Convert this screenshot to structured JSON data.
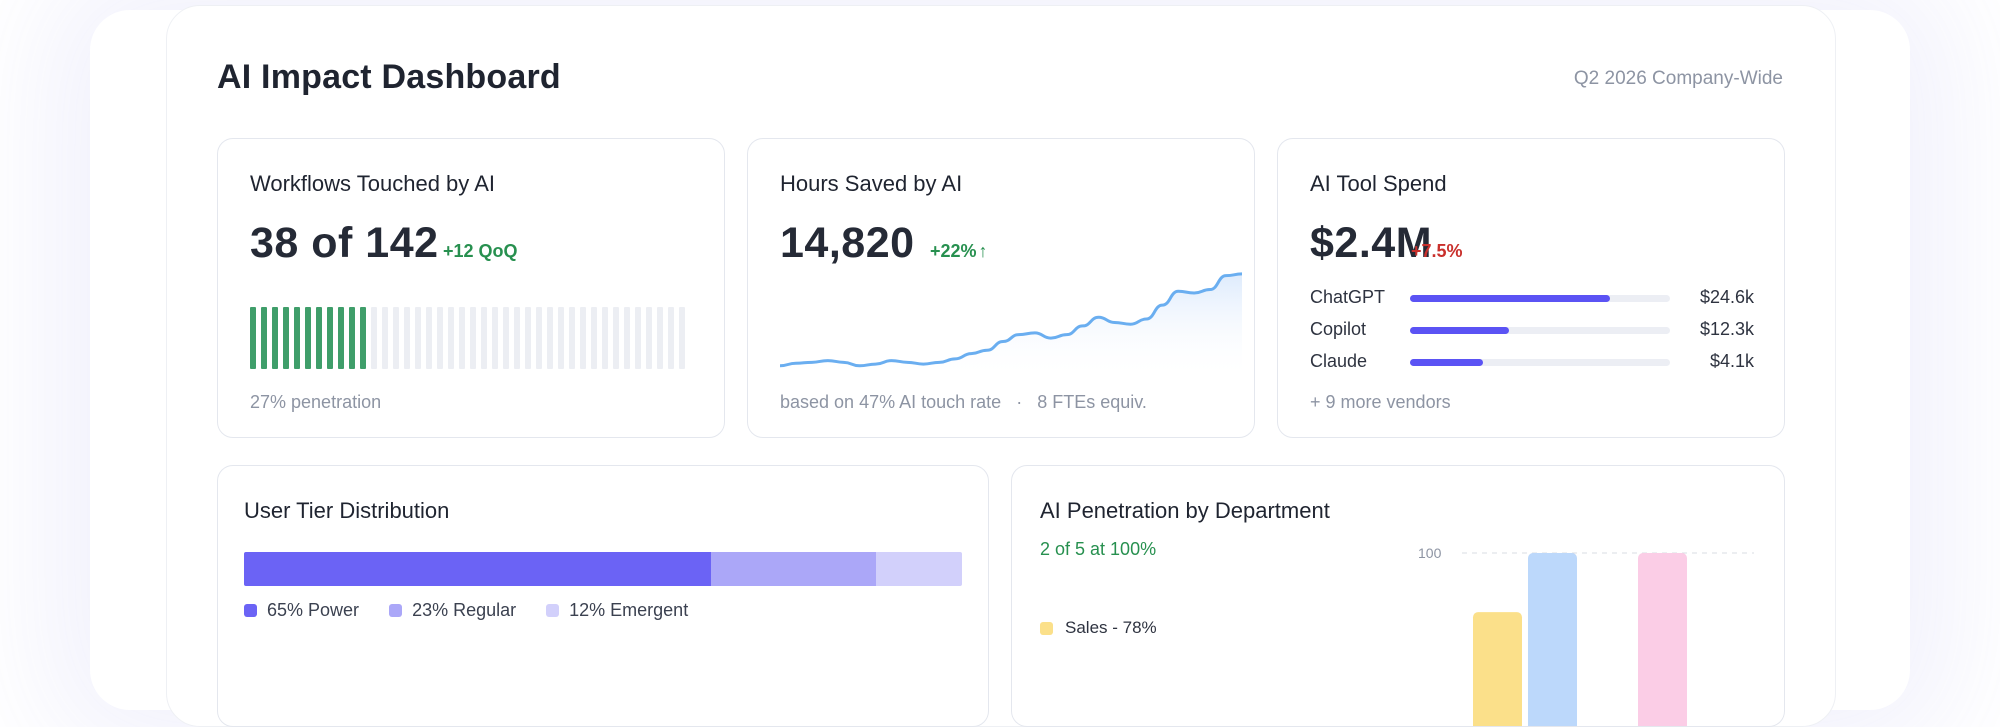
{
  "header": {
    "title": "AI Impact Dashboard",
    "subtitle": "Q2 2026 Company-Wide"
  },
  "workflows": {
    "title": "Workflows Touched by AI",
    "value": "38 of 142",
    "delta": "+12 QoQ",
    "touched": 38,
    "total": 142,
    "footer": "27% penetration",
    "colors": {
      "active": "#3f9e6a",
      "inactive": "#eceef3"
    }
  },
  "hours": {
    "title": "Hours Saved by AI",
    "value": "14,820",
    "delta": "+22%",
    "footer_a": "based on 47% AI touch rate",
    "separator": "·",
    "footer_b": "8 FTEs equiv.",
    "colors": {
      "line": "#6aaef0"
    }
  },
  "spend": {
    "title": "AI Tool Spend",
    "value": "$2.4M",
    "delta": "+7.5%",
    "vendors": [
      {
        "name": "ChatGPT",
        "amount": "$24.6k",
        "share": 0.77
      },
      {
        "name": "Copilot",
        "amount": "$12.3k",
        "share": 0.38
      },
      {
        "name": "Claude",
        "amount": "$4.1k",
        "share": 0.28
      }
    ],
    "more": "+ 9 more vendors"
  },
  "tiers": {
    "title": "User Tier Distribution",
    "segments": [
      {
        "label": "65% Power",
        "share": 65,
        "color": "#6b63f5"
      },
      {
        "label": "23% Regular",
        "share": 23,
        "color": "#aba7f8"
      },
      {
        "label": "12% Emergent",
        "share": 12,
        "color": "#d2d0fb"
      }
    ]
  },
  "dept": {
    "title": "AI Penetration by Department",
    "summary": "2 of 5 at 100%",
    "legend_first": "Sales - 78%",
    "legend_first_color": "#fbe08a"
  },
  "chart_data": [
    {
      "type": "line",
      "title": "Hours Saved by AI",
      "x": [
        1,
        2,
        3,
        4,
        5,
        6,
        7,
        8,
        9,
        10,
        11,
        12,
        13,
        14,
        15,
        16,
        17,
        18,
        19,
        20,
        21,
        22,
        23,
        24,
        25,
        26,
        27,
        28,
        29,
        30
      ],
      "values": [
        3,
        4.5,
        5,
        6,
        5,
        3,
        4,
        6,
        5,
        4,
        5,
        7,
        10,
        12,
        17,
        21,
        22,
        19,
        21,
        26,
        31,
        28,
        27,
        30,
        38,
        46,
        45,
        47,
        55,
        56
      ],
      "ylim": [
        0,
        60
      ]
    },
    {
      "type": "bar",
      "title": "AI Penetration by Department",
      "categories": [
        "Sales",
        "",
        "",
        ""
      ],
      "values": [
        78,
        100,
        null,
        100
      ],
      "colors": [
        "#fbe08a",
        "#bcd8fb",
        "#ffffff",
        "#fbcde6"
      ],
      "ylim": [
        0,
        100
      ],
      "y_ticks": [
        100
      ],
      "grid": true
    }
  ]
}
